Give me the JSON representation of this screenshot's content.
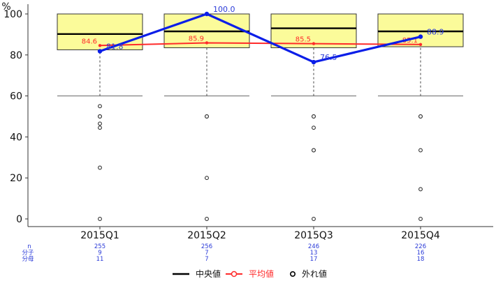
{
  "chart_data": {
    "type": "boxplot",
    "y_axis_unit": "%",
    "ylim": [
      0,
      100
    ],
    "y_ticks": [
      0,
      20,
      40,
      60,
      80,
      100
    ],
    "categories": [
      "2015Q1",
      "2015Q2",
      "2015Q3",
      "2015Q4"
    ],
    "boxes": [
      {
        "q1": 82.5,
        "median": 90.2,
        "q3": 100,
        "whisker_low": 60,
        "whisker_high": 100
      },
      {
        "q1": 83.5,
        "median": 91.5,
        "q3": 100,
        "whisker_low": 60,
        "whisker_high": 100
      },
      {
        "q1": 83.5,
        "median": 93.0,
        "q3": 100,
        "whisker_low": 60,
        "whisker_high": 100
      },
      {
        "q1": 84.0,
        "median": 91.5,
        "q3": 100,
        "whisker_low": 60,
        "whisker_high": 100
      }
    ],
    "outliers": [
      [
        55,
        50,
        50,
        46.5,
        44.5,
        25,
        0
      ],
      [
        50,
        50,
        20,
        0
      ],
      [
        50,
        50,
        44.5,
        33.5,
        33.5,
        0
      ],
      [
        50,
        50,
        33.5,
        14.5,
        0
      ]
    ],
    "means": [
      84.6,
      85.9,
      85.5,
      85.1
    ],
    "mean_labels": [
      "84.6",
      "85.9",
      "85.5",
      "85.1"
    ],
    "values": [
      81.8,
      100.0,
      76.5,
      88.9
    ],
    "value_labels": [
      "81.8",
      "100.0",
      "76.5",
      "88.9"
    ],
    "count_rows": {
      "n_label": "n",
      "numerator_label": "分子",
      "denominator_label": "分母",
      "n": [
        "255",
        "256",
        "246",
        "226"
      ],
      "numerator": [
        "9",
        "7",
        "13",
        "16"
      ],
      "denominator": [
        "11",
        "7",
        "17",
        "18"
      ]
    },
    "legend": {
      "median": "中央値",
      "mean": "平均値",
      "outlier": "外れ値"
    },
    "colors": {
      "box_fill": "#fbfb9a",
      "mean": "#ff2a2a",
      "value": "#0b1ee8",
      "counts": "#2a3ad8"
    }
  }
}
